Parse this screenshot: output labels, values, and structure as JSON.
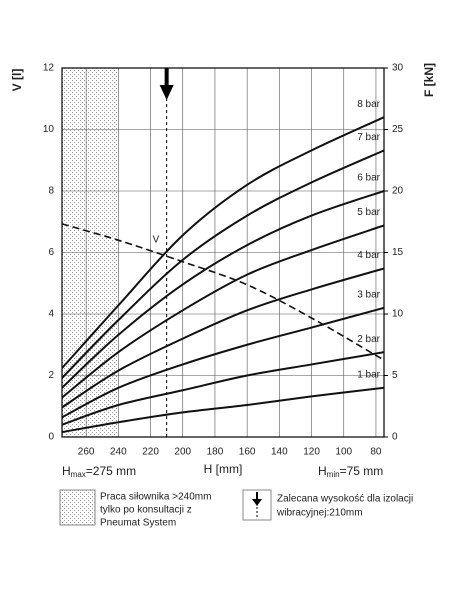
{
  "chart_data": {
    "type": "line",
    "x_label": "H [mm]",
    "y_label": "V [l]",
    "y2_label": "F [kN]",
    "xlim": [
      275,
      75
    ],
    "xticks": [
      260,
      240,
      220,
      200,
      180,
      160,
      140,
      120,
      100,
      80
    ],
    "ylim": [
      0,
      12
    ],
    "yticks": [
      0,
      2,
      4,
      6,
      8,
      10,
      12
    ],
    "y2lim": [
      0,
      30
    ],
    "y2ticks": [
      0,
      5,
      10,
      15,
      20,
      25,
      30
    ],
    "grid": true,
    "x": [
      275,
      240,
      200,
      160,
      120,
      75
    ],
    "restricted_from": 240,
    "recommended_h": 210,
    "series": [
      {
        "name": "V",
        "color": "#111111",
        "dashed": true,
        "values": [
          6.93,
          6.4,
          5.7,
          4.95,
          3.87,
          2.5
        ]
      },
      {
        "name": "8 bar",
        "color": "#111111",
        "axis": "y2",
        "values": [
          5.6,
          10.7,
          16.4,
          20.5,
          23.3,
          26
        ]
      },
      {
        "name": "7 bar",
        "color": "#111111",
        "axis": "y2",
        "values": [
          4.8,
          9.5,
          14.4,
          18,
          20.7,
          23.3
        ]
      },
      {
        "name": "6 bar",
        "color": "#111111",
        "axis": "y2",
        "values": [
          4.0,
          8.3,
          12.4,
          15.6,
          18,
          20
        ]
      },
      {
        "name": "5 bar",
        "color": "#111111",
        "axis": "y2",
        "values": [
          3.2,
          6.9,
          10.3,
          13.2,
          15.2,
          17.2
        ]
      },
      {
        "name": "4 bar",
        "color": "#111111",
        "axis": "y2",
        "values": [
          2.4,
          5.4,
          8.0,
          10.3,
          12,
          13.7
        ]
      },
      {
        "name": "3 bar",
        "color": "#111111",
        "axis": "y2",
        "values": [
          1.6,
          4.0,
          5.9,
          7.5,
          8.9,
          10.5
        ]
      },
      {
        "name": "2 bar",
        "color": "#111111",
        "axis": "y2",
        "values": [
          1.0,
          2.6,
          3.8,
          5.0,
          5.9,
          6.9
        ]
      },
      {
        "name": "1 bar",
        "color": "#111111",
        "axis": "y2",
        "values": [
          0.4,
          1.2,
          2.0,
          2.6,
          3.3,
          4.0
        ]
      }
    ],
    "h_max": {
      "symbol": "H",
      "subscript": "max",
      "text": "=275 mm"
    },
    "h_min": {
      "symbol": "H",
      "subscript": "min",
      "text": "=75 mm"
    },
    "legend": {
      "restricted": [
        "Praca siłownika >240mm",
        "tylko po konsultacji z",
        "Pneumat System"
      ],
      "recommended": [
        "Zalecana wysokość dla izolacji",
        "wibracyjnej:210mm"
      ]
    }
  }
}
